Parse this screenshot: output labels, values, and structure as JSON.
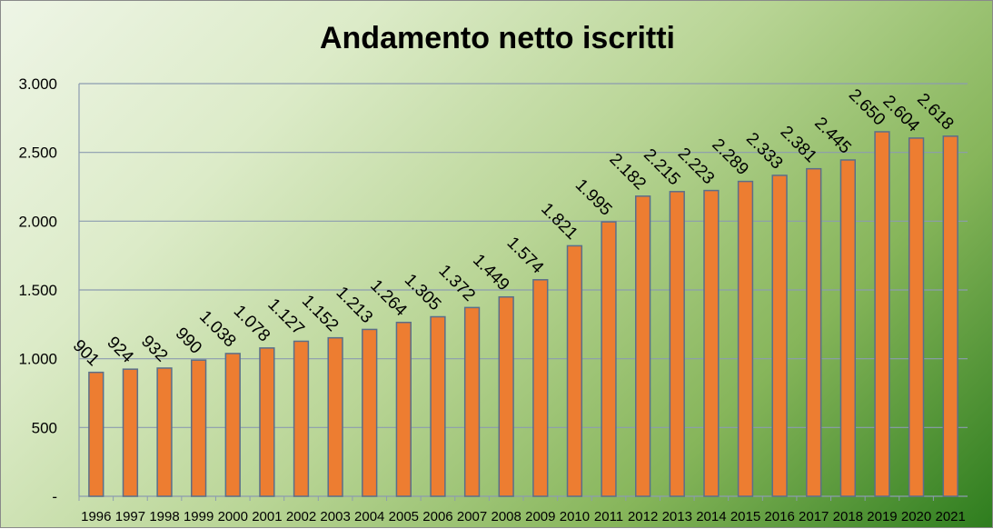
{
  "chart_data": {
    "type": "bar",
    "title": "Andamento netto iscritti",
    "categories": [
      "1996",
      "1997",
      "1998",
      "1999",
      "2000",
      "2001",
      "2002",
      "2003",
      "2004",
      "2005",
      "2006",
      "2007",
      "2008",
      "2009",
      "2010",
      "2011",
      "2012",
      "2013",
      "2014",
      "2015",
      "2016",
      "2017",
      "2018",
      "2019",
      "2020",
      "2021"
    ],
    "values": [
      901,
      924,
      932,
      990,
      1038,
      1078,
      1127,
      1152,
      1213,
      1264,
      1305,
      1372,
      1449,
      1574,
      1821,
      1995,
      2182,
      2215,
      2223,
      2289,
      2333,
      2381,
      2445,
      2650,
      2604,
      2618
    ],
    "data_labels": [
      "901",
      "924",
      "932",
      "990",
      "1.038",
      "1.078",
      "1.127",
      "1.152",
      "1.213",
      "1.264",
      "1.305",
      "1.372",
      "1.449",
      "1.574",
      "1.821",
      "1.995",
      "2.182",
      "2.215",
      "2.223",
      "2.289",
      "2.333",
      "2.381",
      "2.445",
      "2.650",
      "2.604",
      "2.618"
    ],
    "y_ticks": [
      0,
      500,
      1000,
      1500,
      2000,
      2500,
      3000
    ],
    "y_tick_labels": [
      "-",
      "500",
      "1.000",
      "1.500",
      "2.000",
      "2.500",
      "3.000"
    ],
    "ylim": [
      0,
      3000
    ],
    "grid": true,
    "bar_color": "#ed7d31",
    "bar_edge_color": "#5a6f8a",
    "gridline_color": "#8c9bb0"
  }
}
